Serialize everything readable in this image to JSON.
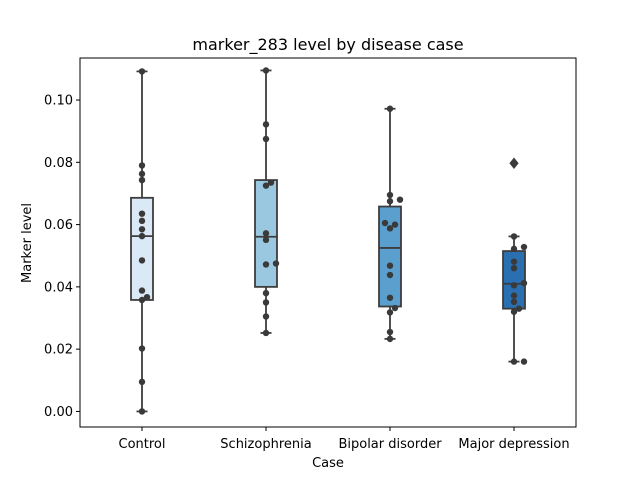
{
  "chart_data": {
    "type": "boxplot",
    "title": "marker_283 level by disease case",
    "xlabel": "Case",
    "ylabel": "Marker level",
    "ylim": [
      -0.005,
      0.1135
    ],
    "yticks": [
      "0.00",
      "0.02",
      "0.04",
      "0.06",
      "0.08",
      "0.10"
    ],
    "ytick_values": [
      0.0,
      0.02,
      0.04,
      0.06,
      0.08,
      0.1
    ],
    "grid": false,
    "categories": [
      "Control",
      "Schizophrenia",
      "Bipolar disorder",
      "Major depression"
    ],
    "colors": [
      "#dbe9f6",
      "#9ac8e0",
      "#5a9fcd",
      "#2a6fb1"
    ],
    "boxes": [
      {
        "q1": 0.0358,
        "median": 0.0563,
        "q3": 0.0686,
        "whisker_low": 0.0,
        "whisker_high": 0.1092,
        "outliers": []
      },
      {
        "q1": 0.04,
        "median": 0.0561,
        "q3": 0.0743,
        "whisker_low": 0.0252,
        "whisker_high": 0.1095,
        "outliers": []
      },
      {
        "q1": 0.0337,
        "median": 0.0525,
        "q3": 0.0658,
        "whisker_low": 0.0233,
        "whisker_high": 0.0972,
        "outliers": []
      },
      {
        "q1": 0.033,
        "median": 0.041,
        "q3": 0.0515,
        "whisker_low": 0.016,
        "whisker_high": 0.0562,
        "outliers": [
          0.0797
        ]
      }
    ],
    "points": [
      [
        0.1092,
        0.079,
        0.0763,
        0.0743,
        0.0635,
        0.0612,
        0.0585,
        0.0563,
        0.0485,
        0.0388,
        0.0367,
        0.0358,
        0.0202,
        0.0095,
        0.0
      ],
      [
        0.1095,
        0.0922,
        0.0875,
        0.0735,
        0.0725,
        0.0572,
        0.0551,
        0.0475,
        0.0472,
        0.038,
        0.035,
        0.0305,
        0.0252
      ],
      [
        0.0972,
        0.0695,
        0.068,
        0.0675,
        0.0605,
        0.06,
        0.0588,
        0.0468,
        0.0438,
        0.0365,
        0.0332,
        0.0318,
        0.0255,
        0.0233
      ],
      [
        0.0797,
        0.0562,
        0.0528,
        0.0522,
        0.0481,
        0.046,
        0.0412,
        0.0405,
        0.0372,
        0.0352,
        0.033,
        0.032,
        0.016,
        0.016
      ]
    ]
  }
}
